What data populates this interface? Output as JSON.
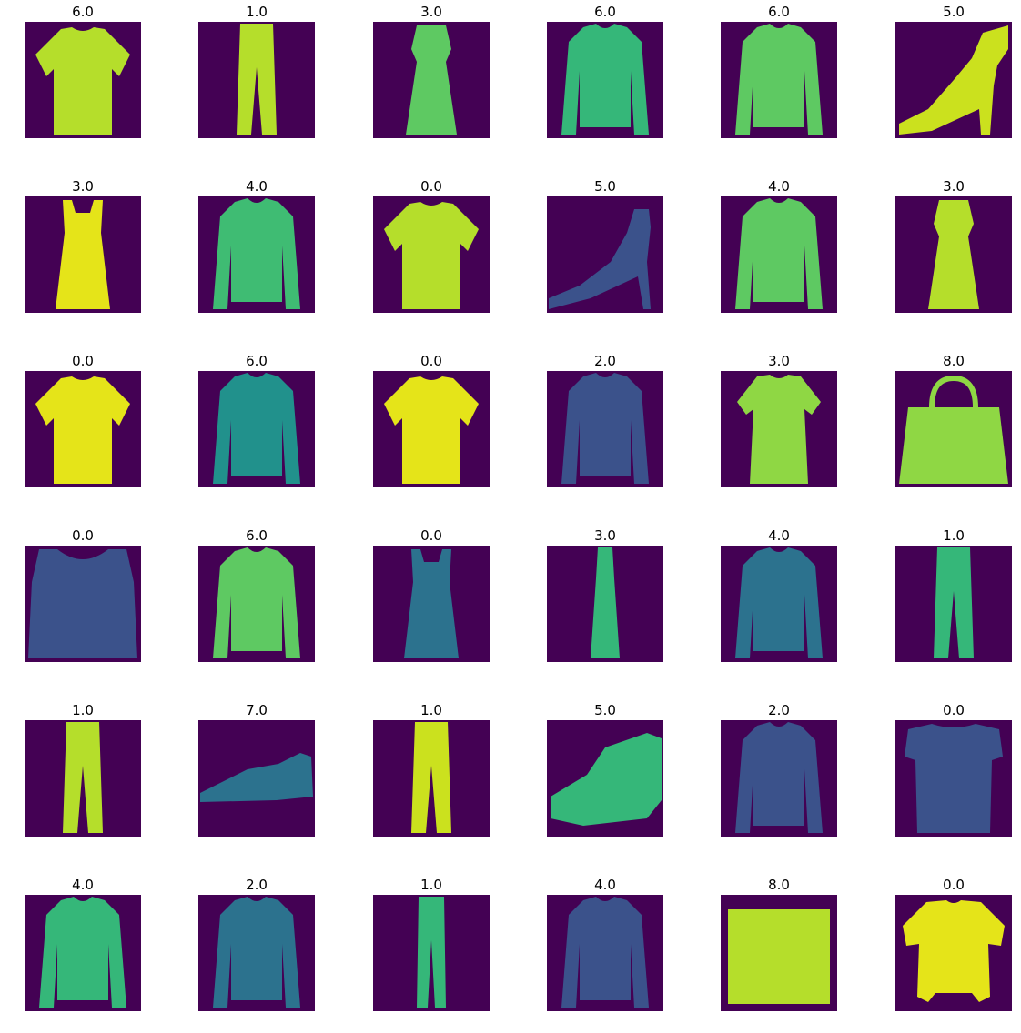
{
  "colors": {
    "background": "#440154",
    "dark": "#3b528b",
    "mid": "#21918c",
    "bright": "#5ec962",
    "brightest": "#fde725",
    "yellowgreen": "#b5de2b"
  },
  "grid": [
    {
      "label": "6.0",
      "item": "shirt-image",
      "shape": "tshirt",
      "fill": "#b5de2b"
    },
    {
      "label": "1.0",
      "item": "trouser-image",
      "shape": "trouser",
      "fill": "#b5de2b"
    },
    {
      "label": "3.0",
      "item": "dress-image",
      "shape": "dress",
      "fill": "#5ec962"
    },
    {
      "label": "6.0",
      "item": "shirt-image",
      "shape": "longsleeve",
      "fill": "#35b779"
    },
    {
      "label": "6.0",
      "item": "shirt-image",
      "shape": "longsleeve",
      "fill": "#5ec962"
    },
    {
      "label": "5.0",
      "item": "sandal-image",
      "shape": "sandal",
      "fill": "#cbe11e"
    },
    {
      "label": "3.0",
      "item": "dress-image",
      "shape": "slipdress",
      "fill": "#e5e419"
    },
    {
      "label": "4.0",
      "item": "coat-image",
      "shape": "longsleeve",
      "fill": "#3fbc73"
    },
    {
      "label": "0.0",
      "item": "tshirt-image",
      "shape": "tshirt",
      "fill": "#b5de2b"
    },
    {
      "label": "5.0",
      "item": "sandal-image",
      "shape": "heel",
      "fill": "#3b528b"
    },
    {
      "label": "4.0",
      "item": "coat-image",
      "shape": "longsleeve",
      "fill": "#5ec962"
    },
    {
      "label": "3.0",
      "item": "dress-image",
      "shape": "dress",
      "fill": "#b5de2b"
    },
    {
      "label": "0.0",
      "item": "tshirt-image",
      "shape": "tshirt",
      "fill": "#e5e419"
    },
    {
      "label": "6.0",
      "item": "shirt-image",
      "shape": "longsleeve",
      "fill": "#21918c"
    },
    {
      "label": "0.0",
      "item": "tshirt-image",
      "shape": "tshirt",
      "fill": "#e5e419"
    },
    {
      "label": "2.0",
      "item": "pullover-image",
      "shape": "longsleeve",
      "fill": "#3b528b"
    },
    {
      "label": "3.0",
      "item": "dress-image",
      "shape": "tshirt-dress",
      "fill": "#8fd744"
    },
    {
      "label": "8.0",
      "item": "bag-image",
      "shape": "bag",
      "fill": "#8fd744"
    },
    {
      "label": "0.0",
      "item": "tshirt-image",
      "shape": "tank",
      "fill": "#3b528b"
    },
    {
      "label": "6.0",
      "item": "shirt-image",
      "shape": "longsleeve",
      "fill": "#5ec962"
    },
    {
      "label": "0.0",
      "item": "tshirt-image",
      "shape": "slipdress",
      "fill": "#2c728e"
    },
    {
      "label": "3.0",
      "item": "dress-image",
      "shape": "slimdress",
      "fill": "#35b779"
    },
    {
      "label": "4.0",
      "item": "coat-image",
      "shape": "longsleeve",
      "fill": "#2c728e"
    },
    {
      "label": "1.0",
      "item": "trouser-image",
      "shape": "trouser",
      "fill": "#35b779"
    },
    {
      "label": "1.0",
      "item": "trouser-image",
      "shape": "trouser",
      "fill": "#b5de2b"
    },
    {
      "label": "7.0",
      "item": "sneaker-image",
      "shape": "sneaker",
      "fill": "#2c728e"
    },
    {
      "label": "1.0",
      "item": "trouser-image",
      "shape": "trouser",
      "fill": "#cbe11e"
    },
    {
      "label": "5.0",
      "item": "sandal-image",
      "shape": "wedge",
      "fill": "#35b779"
    },
    {
      "label": "2.0",
      "item": "pullover-image",
      "shape": "longsleeve",
      "fill": "#3b528b"
    },
    {
      "label": "0.0",
      "item": "tshirt-image",
      "shape": "striped-top",
      "fill": "#3b528b"
    },
    {
      "label": "4.0",
      "item": "coat-image",
      "shape": "longsleeve",
      "fill": "#35b779"
    },
    {
      "label": "2.0",
      "item": "pullover-image",
      "shape": "longsleeve",
      "fill": "#2c728e"
    },
    {
      "label": "1.0",
      "item": "trouser-image",
      "shape": "trouser-slim",
      "fill": "#35b779"
    },
    {
      "label": "4.0",
      "item": "coat-image",
      "shape": "longsleeve",
      "fill": "#3b528b"
    },
    {
      "label": "8.0",
      "item": "bag-image",
      "shape": "clutch",
      "fill": "#b5de2b"
    },
    {
      "label": "0.0",
      "item": "tshirt-image",
      "shape": "wide-tee",
      "fill": "#e5e419"
    }
  ]
}
